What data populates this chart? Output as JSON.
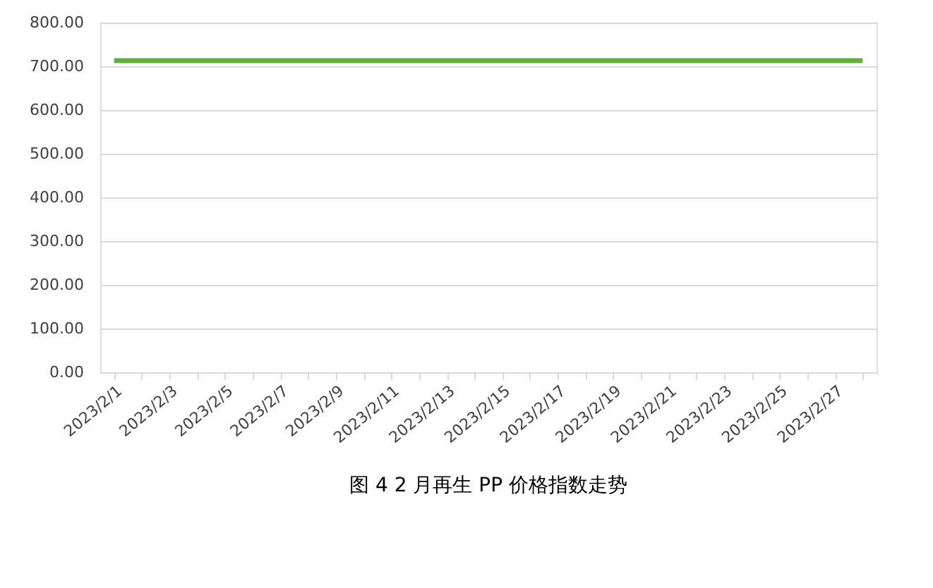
{
  "chart_data": {
    "type": "line",
    "categories": [
      "2023/2/1",
      null,
      "2023/2/3",
      null,
      "2023/2/5",
      null,
      "2023/2/7",
      null,
      "2023/2/9",
      null,
      "2023/2/11",
      null,
      "2023/2/13",
      null,
      "2023/2/15",
      null,
      "2023/2/17",
      null,
      "2023/2/19",
      null,
      "2023/2/21",
      null,
      "2023/2/23",
      null,
      "2023/2/25",
      null,
      "2023/2/27",
      null
    ],
    "series": [
      {
        "color": "#5fb13a",
        "values": [
          713,
          713,
          713,
          713,
          713,
          713,
          713,
          713,
          713,
          713,
          713,
          713,
          713,
          713,
          713,
          713,
          713,
          713,
          713,
          713,
          713,
          713,
          713,
          713,
          713,
          713,
          713,
          713
        ]
      }
    ],
    "ylim": [
      0,
      800
    ],
    "yticks": [
      {
        "value": 0,
        "label": "0.00"
      },
      {
        "value": 100,
        "label": "100.00"
      },
      {
        "value": 200,
        "label": "200.00"
      },
      {
        "value": 300,
        "label": "300.00"
      },
      {
        "value": 400,
        "label": "400.00"
      },
      {
        "value": 500,
        "label": "500.00"
      },
      {
        "value": 600,
        "label": "600.00"
      },
      {
        "value": 700,
        "label": "700.00"
      },
      {
        "value": 800,
        "label": "800.00"
      }
    ],
    "grid": "y",
    "legend": false,
    "marker": "none",
    "line_style": "solid",
    "annotations": [
      "图 4 2 月再生 PP 价格指数走势"
    ]
  }
}
